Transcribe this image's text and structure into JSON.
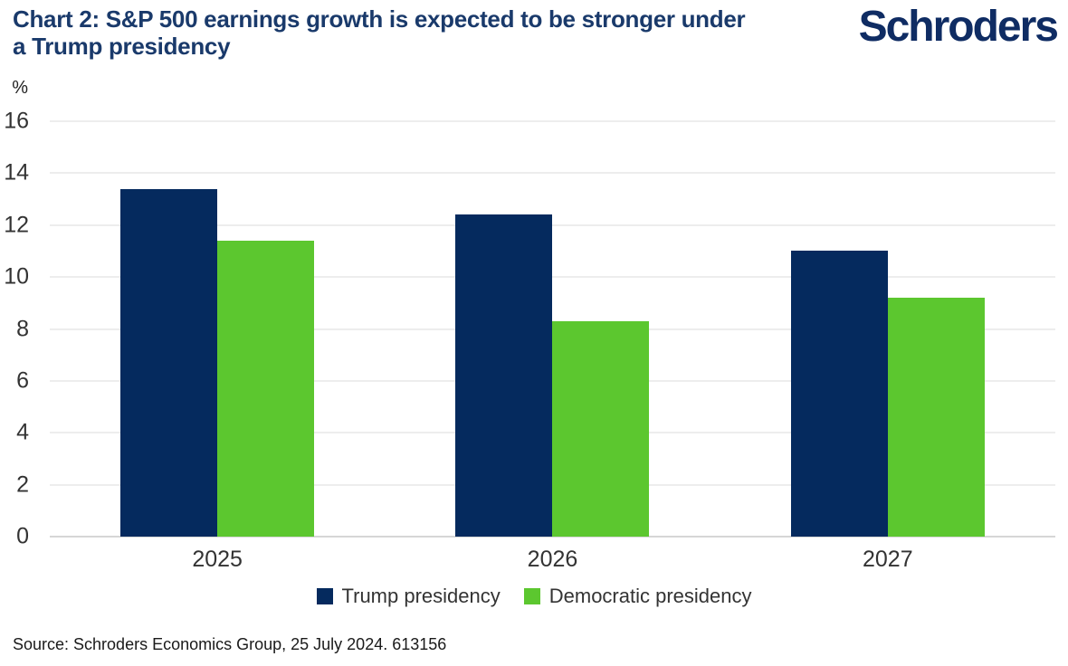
{
  "header": {
    "title_lines": [
      "Chart 2: S&P 500 earnings growth is expected to be stronger under",
      "a Trump presidency"
    ],
    "logo_text": "Schroders"
  },
  "colors": {
    "title_navy": "#1a3a6b",
    "logo_navy": "#0f2c63",
    "trump_navy": "#052a5e",
    "democratic_green": "#5cc72f",
    "gridline": "#ededed",
    "baseline": "#d6d6d6"
  },
  "chart_data": {
    "type": "bar",
    "title": "Chart 2: S&P 500 earnings growth is expected to be stronger under a Trump presidency",
    "unit_label": "%",
    "ylabel": "%",
    "xlabel": "",
    "categories": [
      "2025",
      "2026",
      "2027"
    ],
    "series": [
      {
        "name": "Trump presidency",
        "color": "#052a5e",
        "values": [
          13.4,
          12.4,
          11.0
        ]
      },
      {
        "name": "Democratic presidency",
        "color": "#5cc72f",
        "values": [
          11.4,
          8.3,
          9.2
        ]
      }
    ],
    "ylim": [
      0,
      16
    ],
    "yticks": [
      0,
      2,
      4,
      6,
      8,
      10,
      12,
      14,
      16
    ],
    "grid": true,
    "legend_position": "bottom"
  },
  "footer": {
    "source": "Source: Schroders Economics Group, 25 July 2024. 613156"
  }
}
